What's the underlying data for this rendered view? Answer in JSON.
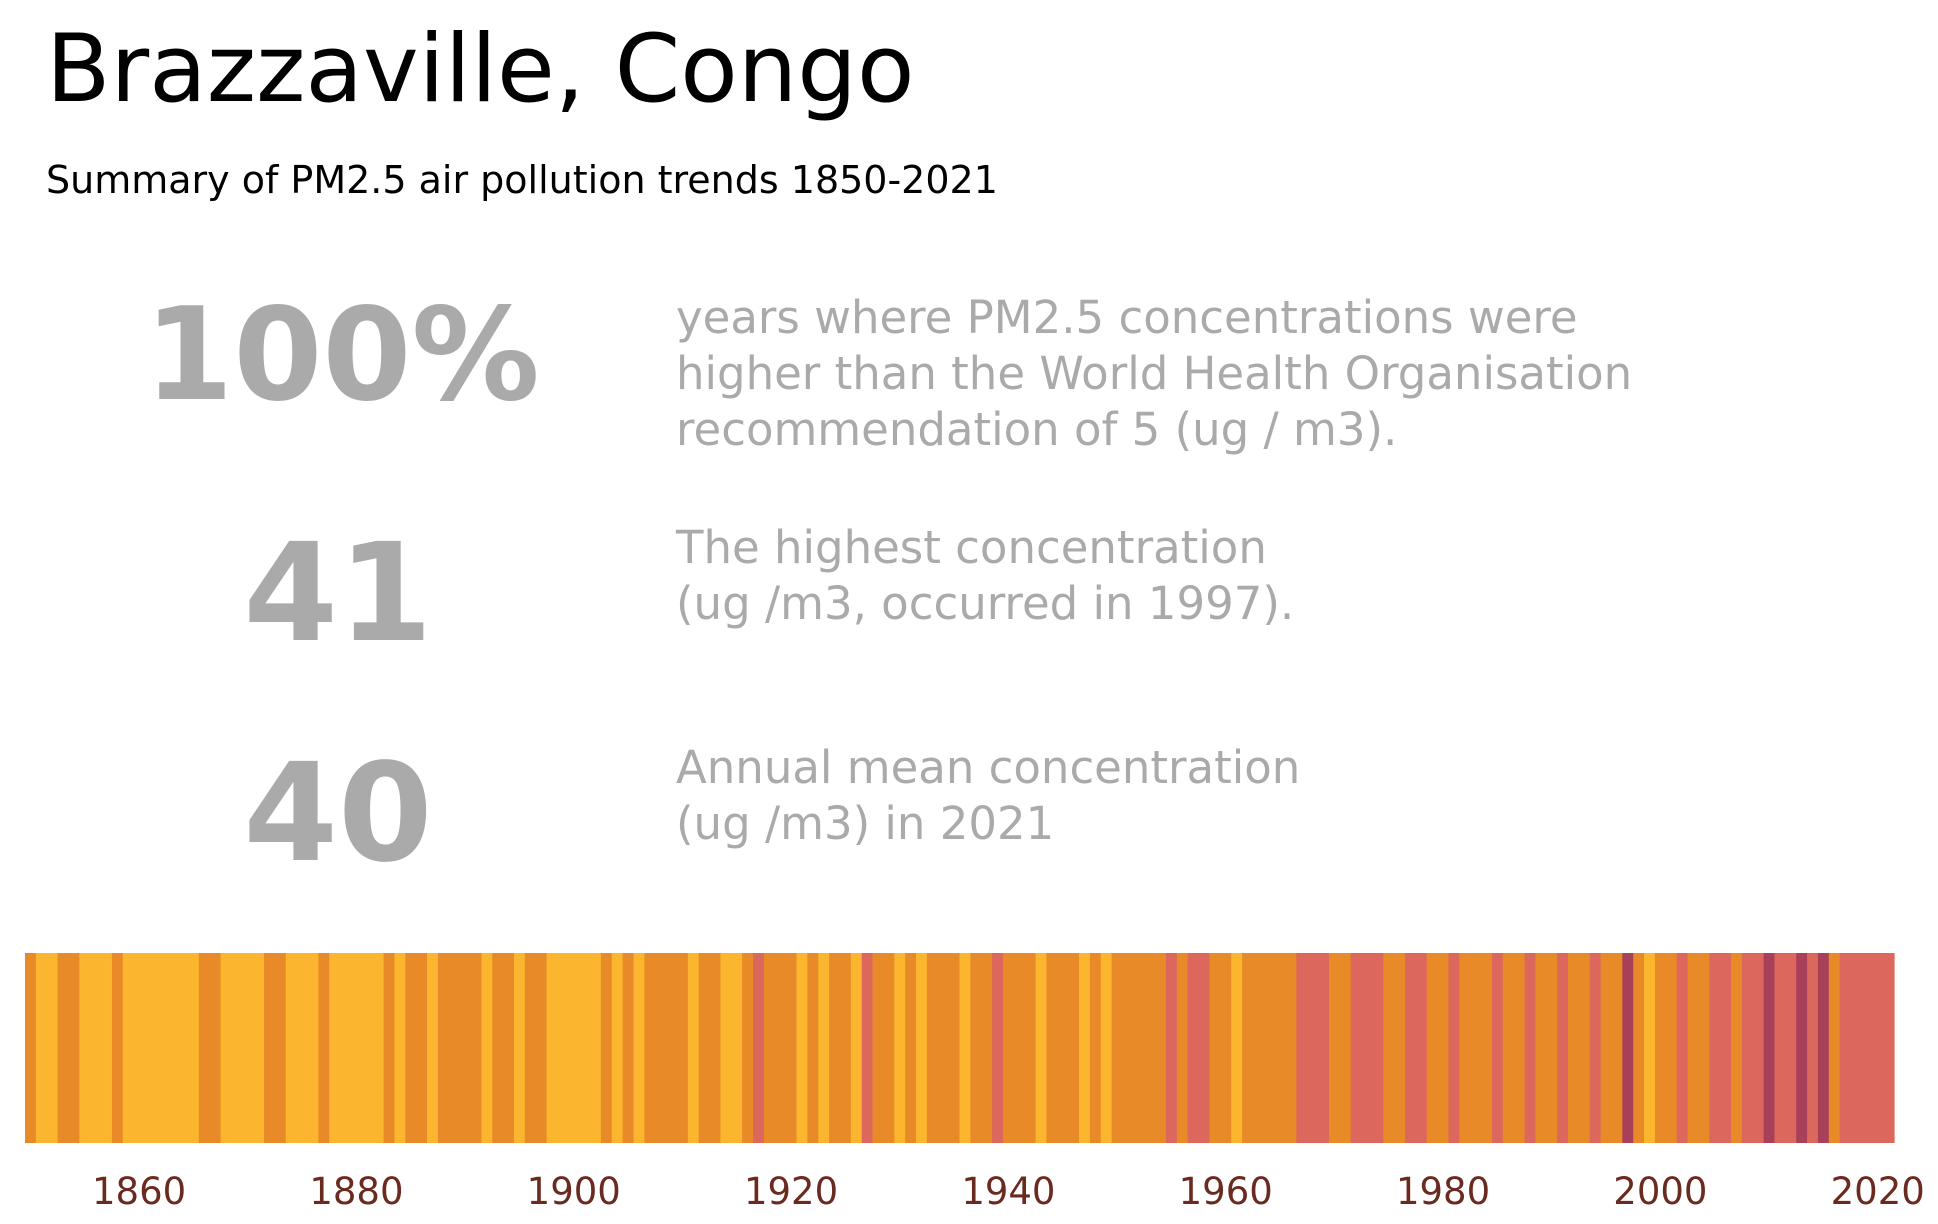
{
  "header": {
    "title": "Brazzaville, Congo",
    "subtitle": "Summary of PM2.5 air pollution trends 1850-2021"
  },
  "stats": [
    {
      "value": "100%",
      "lines": [
        "years where PM2.5 concentrations were",
        "higher than the World Health Organisation",
        "recommendation of 5 (ug / m3)."
      ]
    },
    {
      "value": "41",
      "lines": [
        "The highest concentration",
        "(ug /m3, occurred in 1997)."
      ]
    },
    {
      "value": "40",
      "lines": [
        "Annual mean concentration",
        "(ug /m3) in 2021"
      ]
    }
  ],
  "colors": {
    "stat_text": "#aaaaaa",
    "tick_text": "#6b2a1f",
    "level_1": "#fbb52e",
    "level_2": "#e98a28",
    "level_3": "#dc675c",
    "level_4": "#a8405a"
  },
  "chart_data": {
    "type": "heatmap",
    "xlim": [
      1850,
      2022
    ],
    "x_ticks": [
      1860,
      1880,
      1900,
      1920,
      1940,
      1960,
      1980,
      2000,
      2020
    ],
    "color_levels": {
      "1": "lowest concentration band",
      "2": "moderate concentration band",
      "3": "high concentration band",
      "4": "highest concentration band"
    },
    "runs": [
      {
        "start": 1850,
        "end": 1851,
        "level": 2
      },
      {
        "start": 1851,
        "end": 1853,
        "level": 1
      },
      {
        "start": 1853,
        "end": 1855,
        "level": 2
      },
      {
        "start": 1855,
        "end": 1858,
        "level": 1
      },
      {
        "start": 1858,
        "end": 1859,
        "level": 2
      },
      {
        "start": 1859,
        "end": 1866,
        "level": 1
      },
      {
        "start": 1866,
        "end": 1868,
        "level": 2
      },
      {
        "start": 1868,
        "end": 1872,
        "level": 1
      },
      {
        "start": 1872,
        "end": 1874,
        "level": 2
      },
      {
        "start": 1874,
        "end": 1877,
        "level": 1
      },
      {
        "start": 1877,
        "end": 1878,
        "level": 2
      },
      {
        "start": 1878,
        "end": 1883,
        "level": 1
      },
      {
        "start": 1883,
        "end": 1884,
        "level": 2
      },
      {
        "start": 1884,
        "end": 1885,
        "level": 1
      },
      {
        "start": 1885,
        "end": 1887,
        "level": 2
      },
      {
        "start": 1887,
        "end": 1888,
        "level": 1
      },
      {
        "start": 1888,
        "end": 1892,
        "level": 2
      },
      {
        "start": 1892,
        "end": 1893,
        "level": 1
      },
      {
        "start": 1893,
        "end": 1895,
        "level": 2
      },
      {
        "start": 1895,
        "end": 1896,
        "level": 1
      },
      {
        "start": 1896,
        "end": 1898,
        "level": 2
      },
      {
        "start": 1898,
        "end": 1903,
        "level": 1
      },
      {
        "start": 1903,
        "end": 1904,
        "level": 2
      },
      {
        "start": 1904,
        "end": 1905,
        "level": 1
      },
      {
        "start": 1905,
        "end": 1906,
        "level": 2
      },
      {
        "start": 1906,
        "end": 1907,
        "level": 1
      },
      {
        "start": 1907,
        "end": 1911,
        "level": 2
      },
      {
        "start": 1911,
        "end": 1912,
        "level": 1
      },
      {
        "start": 1912,
        "end": 1914,
        "level": 2
      },
      {
        "start": 1914,
        "end": 1916,
        "level": 1
      },
      {
        "start": 1916,
        "end": 1917,
        "level": 2
      },
      {
        "start": 1917,
        "end": 1918,
        "level": 3
      },
      {
        "start": 1918,
        "end": 1921,
        "level": 2
      },
      {
        "start": 1921,
        "end": 1922,
        "level": 1
      },
      {
        "start": 1922,
        "end": 1923,
        "level": 2
      },
      {
        "start": 1923,
        "end": 1924,
        "level": 1
      },
      {
        "start": 1924,
        "end": 1926,
        "level": 2
      },
      {
        "start": 1926,
        "end": 1927,
        "level": 1
      },
      {
        "start": 1927,
        "end": 1928,
        "level": 3
      },
      {
        "start": 1928,
        "end": 1930,
        "level": 2
      },
      {
        "start": 1930,
        "end": 1931,
        "level": 1
      },
      {
        "start": 1931,
        "end": 1932,
        "level": 2
      },
      {
        "start": 1932,
        "end": 1933,
        "level": 1
      },
      {
        "start": 1933,
        "end": 1936,
        "level": 2
      },
      {
        "start": 1936,
        "end": 1937,
        "level": 1
      },
      {
        "start": 1937,
        "end": 1939,
        "level": 2
      },
      {
        "start": 1939,
        "end": 1940,
        "level": 3
      },
      {
        "start": 1940,
        "end": 1943,
        "level": 2
      },
      {
        "start": 1943,
        "end": 1944,
        "level": 1
      },
      {
        "start": 1944,
        "end": 1947,
        "level": 2
      },
      {
        "start": 1947,
        "end": 1948,
        "level": 1
      },
      {
        "start": 1948,
        "end": 1949,
        "level": 2
      },
      {
        "start": 1949,
        "end": 1950,
        "level": 1
      },
      {
        "start": 1950,
        "end": 1955,
        "level": 2
      },
      {
        "start": 1955,
        "end": 1956,
        "level": 3
      },
      {
        "start": 1956,
        "end": 1957,
        "level": 2
      },
      {
        "start": 1957,
        "end": 1959,
        "level": 3
      },
      {
        "start": 1959,
        "end": 1961,
        "level": 2
      },
      {
        "start": 1961,
        "end": 1962,
        "level": 1
      },
      {
        "start": 1962,
        "end": 1967,
        "level": 2
      },
      {
        "start": 1967,
        "end": 1970,
        "level": 3
      },
      {
        "start": 1970,
        "end": 1972,
        "level": 2
      },
      {
        "start": 1972,
        "end": 1975,
        "level": 3
      },
      {
        "start": 1975,
        "end": 1977,
        "level": 2
      },
      {
        "start": 1977,
        "end": 1979,
        "level": 3
      },
      {
        "start": 1979,
        "end": 1981,
        "level": 2
      },
      {
        "start": 1981,
        "end": 1982,
        "level": 3
      },
      {
        "start": 1982,
        "end": 1985,
        "level": 2
      },
      {
        "start": 1985,
        "end": 1986,
        "level": 3
      },
      {
        "start": 1986,
        "end": 1988,
        "level": 2
      },
      {
        "start": 1988,
        "end": 1989,
        "level": 3
      },
      {
        "start": 1989,
        "end": 1991,
        "level": 2
      },
      {
        "start": 1991,
        "end": 1992,
        "level": 3
      },
      {
        "start": 1992,
        "end": 1994,
        "level": 2
      },
      {
        "start": 1994,
        "end": 1995,
        "level": 3
      },
      {
        "start": 1995,
        "end": 1997,
        "level": 2
      },
      {
        "start": 1997,
        "end": 1998,
        "level": 4
      },
      {
        "start": 1998,
        "end": 1999,
        "level": 2
      },
      {
        "start": 1999,
        "end": 2000,
        "level": 1
      },
      {
        "start": 2000,
        "end": 2002,
        "level": 2
      },
      {
        "start": 2002,
        "end": 2003,
        "level": 3
      },
      {
        "start": 2003,
        "end": 2005,
        "level": 2
      },
      {
        "start": 2005,
        "end": 2007,
        "level": 3
      },
      {
        "start": 2007,
        "end": 2008,
        "level": 2
      },
      {
        "start": 2008,
        "end": 2010,
        "level": 3
      },
      {
        "start": 2010,
        "end": 2011,
        "level": 4
      },
      {
        "start": 2011,
        "end": 2013,
        "level": 3
      },
      {
        "start": 2013,
        "end": 2014,
        "level": 4
      },
      {
        "start": 2014,
        "end": 2015,
        "level": 3
      },
      {
        "start": 2015,
        "end": 2016,
        "level": 4
      },
      {
        "start": 2016,
        "end": 2017,
        "level": 2
      },
      {
        "start": 2017,
        "end": 2022,
        "level": 3
      }
    ]
  }
}
